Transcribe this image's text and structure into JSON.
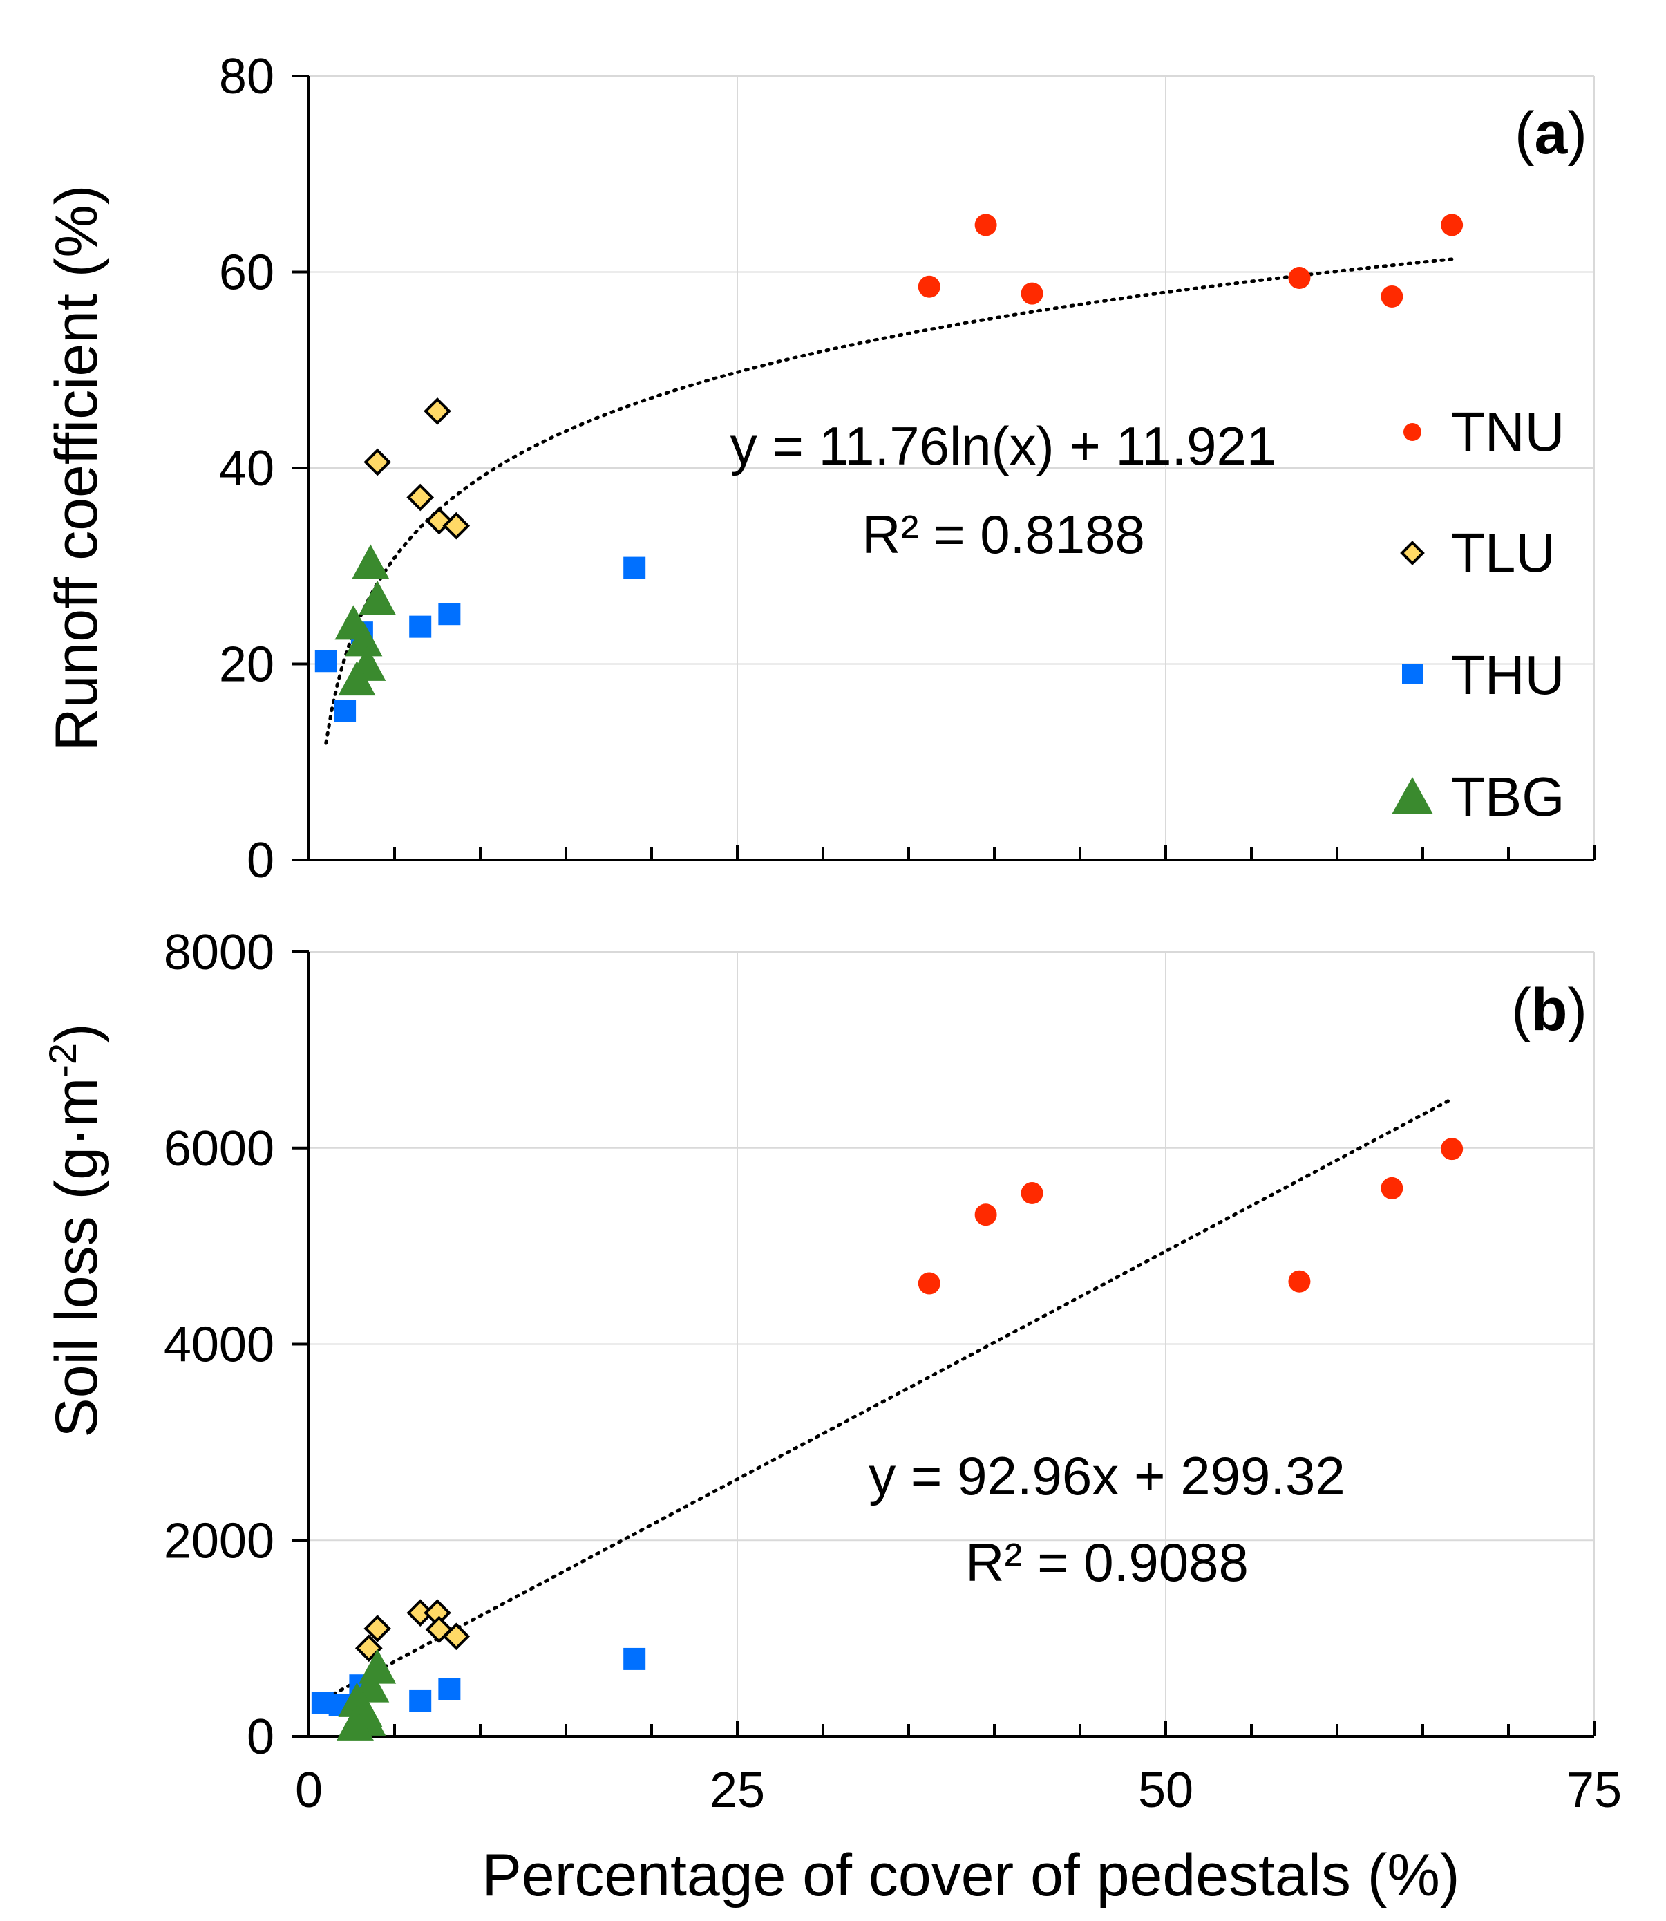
{
  "chart_data": [
    {
      "type": "scatter",
      "panel_label": "(a)",
      "panel_label_parts": [
        "(",
        "a",
        ")"
      ],
      "ylabel": "Runoff coefficient (%)",
      "xlim": [
        0,
        75
      ],
      "ylim": [
        0,
        80
      ],
      "yticks": [
        "0",
        "20",
        "40",
        "60",
        "80"
      ],
      "grid": true,
      "legend": {
        "placement": "right",
        "entries": [
          "TNU",
          "TLU",
          "THU",
          "TBG"
        ]
      },
      "series": [
        {
          "name": "TNU",
          "marker": "circle",
          "color": "#ff2a00",
          "points": [
            [
              36.2,
              58.5
            ],
            [
              39.5,
              64.8
            ],
            [
              42.2,
              57.8
            ],
            [
              57.8,
              59.4
            ],
            [
              63.2,
              57.5
            ],
            [
              66.7,
              64.8
            ]
          ]
        },
        {
          "name": "TLU",
          "marker": "diamond",
          "color": "#ffd966",
          "points": [
            [
              4.0,
              40.6
            ],
            [
              7.5,
              45.8
            ],
            [
              6.5,
              37.0
            ],
            [
              7.6,
              34.6
            ],
            [
              8.6,
              34.1
            ]
          ]
        },
        {
          "name": "THU",
          "marker": "square",
          "color": "#0070ff",
          "points": [
            [
              1.0,
              20.3
            ],
            [
              2.1,
              15.2
            ],
            [
              3.1,
              23.2
            ],
            [
              6.5,
              23.8
            ],
            [
              8.2,
              25.1
            ],
            [
              19.0,
              29.8
            ]
          ]
        },
        {
          "name": "TBG",
          "marker": "triangle",
          "color": "#3a8a2e",
          "points": [
            [
              3.6,
              30.3
            ],
            [
              4.0,
              26.6
            ],
            [
              2.6,
              24.1
            ],
            [
              3.2,
              22.4
            ],
            [
              3.4,
              19.9
            ],
            [
              2.8,
              18.4
            ]
          ]
        }
      ],
      "trendline": {
        "model": "log",
        "a": 11.76,
        "b": 11.921,
        "x_range": [
          1,
          66.7
        ],
        "equation": "y = 11.76ln(x) + 11.921",
        "r_squared": "R² = 0.8188"
      }
    },
    {
      "type": "scatter",
      "panel_label": "(b)",
      "panel_label_parts": [
        "(",
        "b",
        ")"
      ],
      "ylabel": "Soil loss (g·m-2)",
      "ylabel_main": "Soil loss (g·m",
      "ylabel_sup": "-2",
      "ylabel_close": ")",
      "xlabel": "Percentage of cover of pedestals (%)",
      "xlim": [
        0,
        75
      ],
      "ylim": [
        0,
        8000
      ],
      "xticks": [
        "0",
        "25",
        "50",
        "75"
      ],
      "yticks": [
        "0",
        "2000",
        "4000",
        "6000",
        "8000"
      ],
      "grid": true,
      "series": [
        {
          "name": "TNU",
          "marker": "circle",
          "color": "#ff2a00",
          "points": [
            [
              36.2,
              4620
            ],
            [
              39.5,
              5320
            ],
            [
              42.2,
              5540
            ],
            [
              57.8,
              4640
            ],
            [
              63.2,
              5590
            ],
            [
              66.7,
              5990
            ]
          ]
        },
        {
          "name": "TLU",
          "marker": "diamond",
          "color": "#ffd966",
          "points": [
            [
              3.5,
              900
            ],
            [
              4.0,
              1100
            ],
            [
              6.5,
              1260
            ],
            [
              7.5,
              1260
            ],
            [
              7.6,
              1090
            ],
            [
              8.6,
              1020
            ]
          ]
        },
        {
          "name": "THU",
          "marker": "square",
          "color": "#0070ff",
          "points": [
            [
              0.8,
              340
            ],
            [
              1.8,
              320
            ],
            [
              3.0,
              520
            ],
            [
              6.5,
              360
            ],
            [
              8.2,
              480
            ],
            [
              19.0,
              790
            ]
          ]
        },
        {
          "name": "TBG",
          "marker": "triangle",
          "color": "#3a8a2e",
          "points": [
            [
              4.0,
              700
            ],
            [
              3.6,
              510
            ],
            [
              2.8,
              360
            ],
            [
              3.2,
              260
            ],
            [
              3.4,
              170
            ],
            [
              2.7,
              120
            ]
          ]
        }
      ],
      "trendline": {
        "model": "linear",
        "a": 92.96,
        "b": 299.32,
        "x_range": [
          1,
          66.7
        ],
        "equation": "y = 92.96x + 299.32",
        "r_squared": "R² = 0.9088"
      }
    }
  ]
}
